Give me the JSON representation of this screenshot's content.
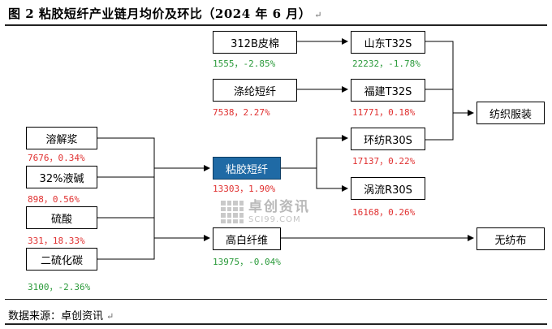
{
  "title": "图 2  粘胶短纤产业链月均价及环比（2024 年 6 月）",
  "source": "数据来源：卓创资讯",
  "paragraph_mark": "↵",
  "watermark": {
    "cn": "卓创资讯",
    "en": "SCI99.COM"
  },
  "nodes": {
    "b312": {
      "label": "312B皮棉",
      "value": "1555，-2.85%"
    },
    "taolun": {
      "label": "涤纶短纤",
      "value": "7538，2.27%"
    },
    "rongjie": {
      "label": "溶解浆",
      "value": "7676，0.34%"
    },
    "yejian": {
      "label": "32%液碱",
      "value": "898，0.56%"
    },
    "liusuan": {
      "label": "硫酸",
      "value": "331，18.33%"
    },
    "ertan": {
      "label": "二硫化碳",
      "value": "3100，-2.36%"
    },
    "zhanjiao": {
      "label": "粘胶短纤",
      "value": "13303，1.90%"
    },
    "gaobai": {
      "label": "高白纤维",
      "value": "13975，-0.04%"
    },
    "shandong": {
      "label": "山东T32S",
      "value": "22232，-1.78%"
    },
    "fujian": {
      "label": "福建T32S",
      "value": "11771，0.18%"
    },
    "huanfang": {
      "label": "环纺R30S",
      "value": "17137，0.22%"
    },
    "woliu": {
      "label": "涡流R30S",
      "value": "16168，0.26%"
    },
    "fangzhi": {
      "label": "纺织服装"
    },
    "wufang": {
      "label": "无纺布"
    }
  }
}
